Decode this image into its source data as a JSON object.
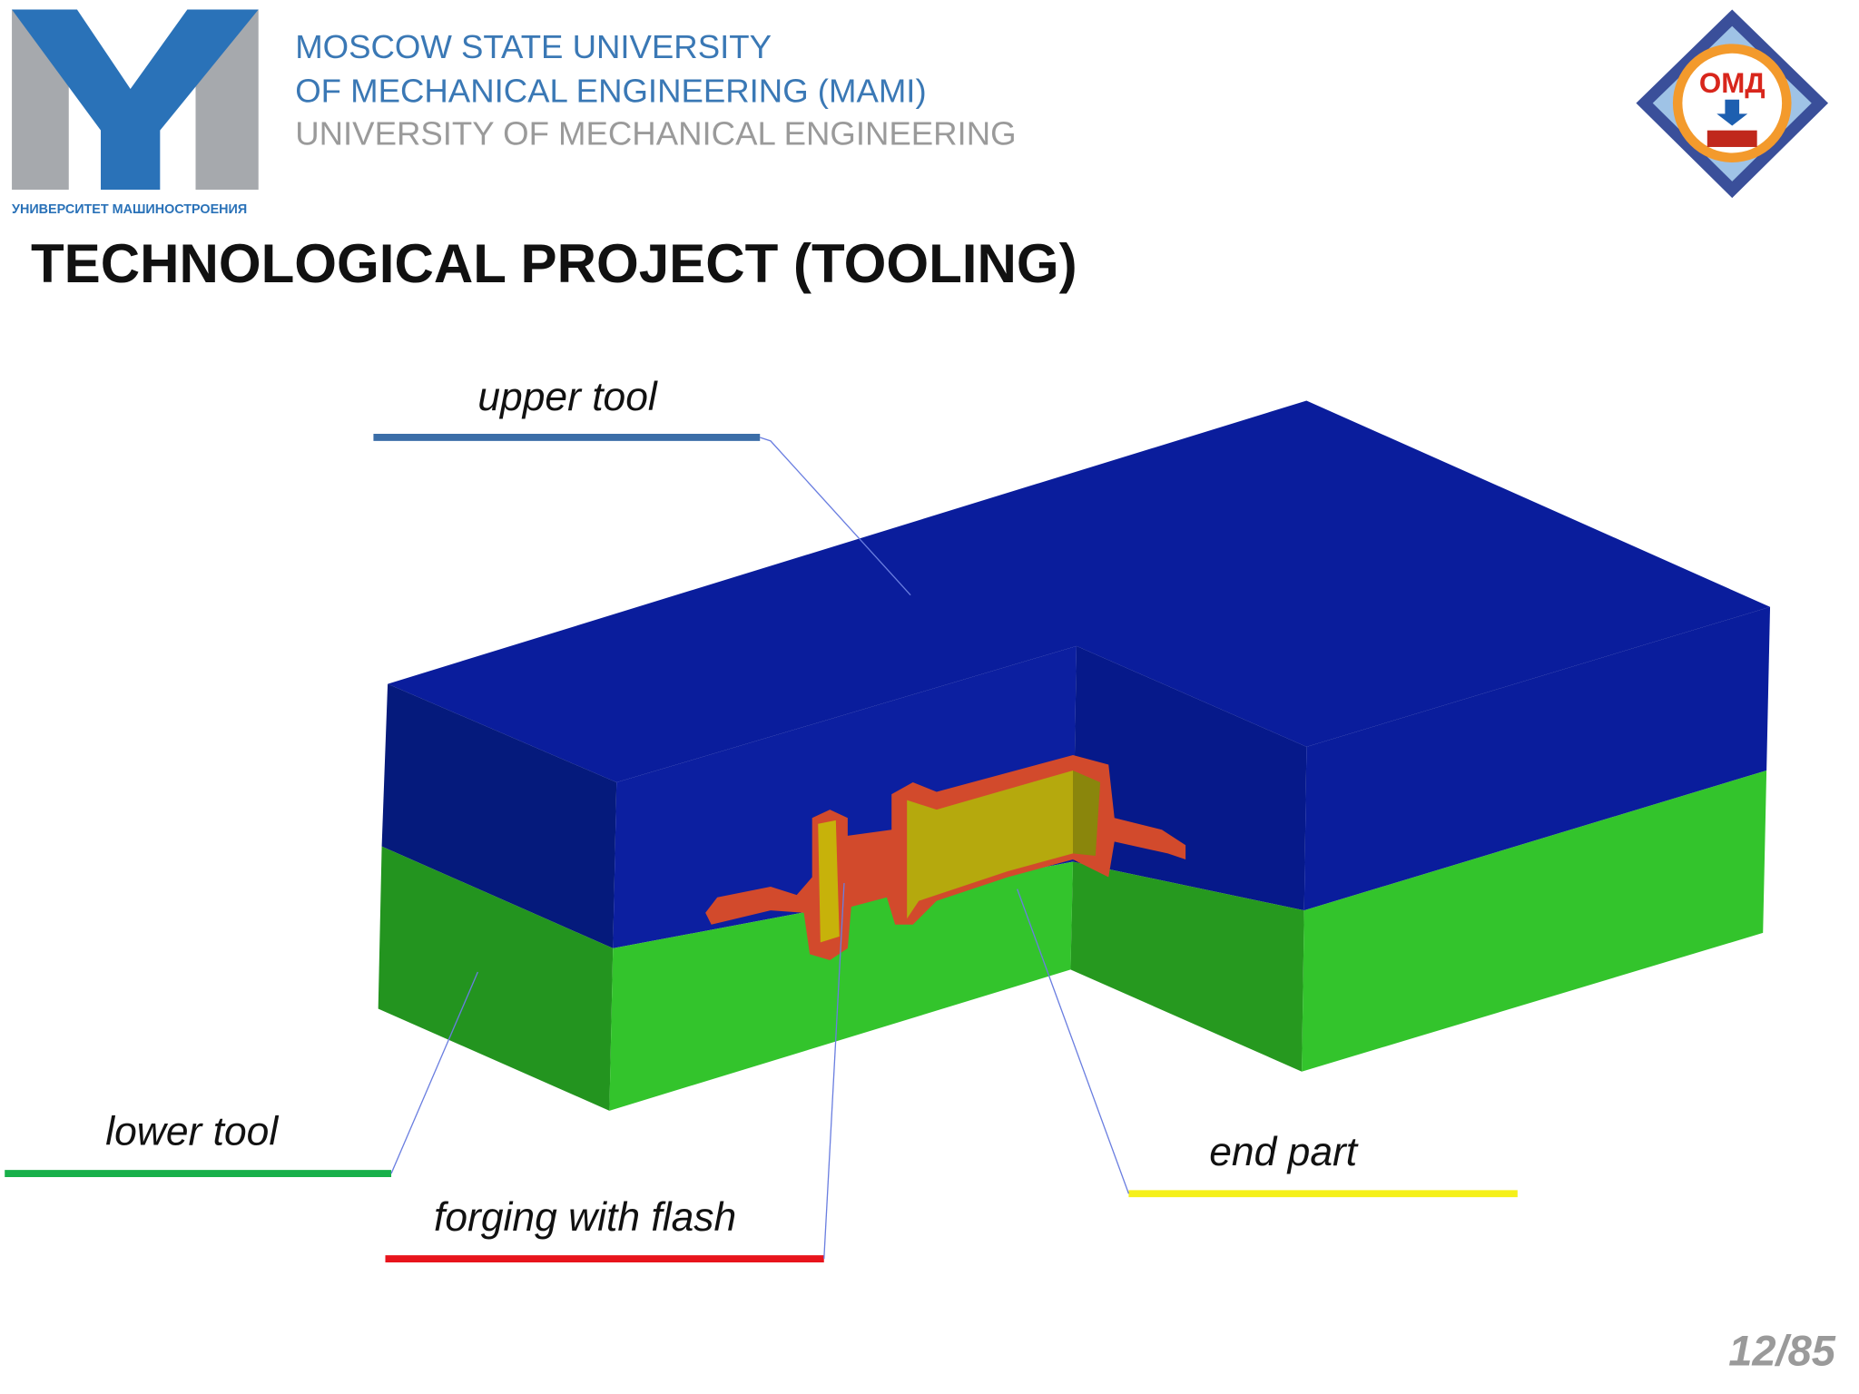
{
  "header": {
    "lines": [
      "MOSCOW STATE UNIVERSITY",
      "OF MECHANICAL ENGINEERING (MAMI)",
      "UNIVERSITY OF MECHANICAL ENGINEERING"
    ],
    "logo_caption": "УНИВЕРСИТЕТ МАШИНОСТРОЕНИЯ",
    "badge_text": "ОМД"
  },
  "slide": {
    "title": "TECHNOLOGICAL PROJECT (TOOLING)",
    "page_number": "12/85"
  },
  "labels": {
    "upper_tool": "upper tool",
    "lower_tool": "lower tool",
    "forging_with_flash": "forging with flash",
    "end_part": "end part"
  }
}
